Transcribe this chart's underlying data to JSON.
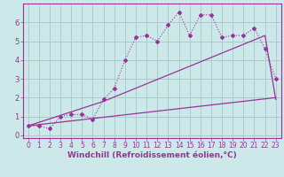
{
  "title": "",
  "xlabel": "Windchill (Refroidissement éolien,°C)",
  "ylabel": "",
  "background_color": "#cce8e8",
  "grid_color": "#aacccc",
  "line_color": "#993399",
  "xlim": [
    -0.5,
    23.5
  ],
  "ylim": [
    -0.15,
    7.0
  ],
  "xticks": [
    0,
    1,
    2,
    3,
    4,
    5,
    6,
    7,
    8,
    9,
    10,
    11,
    12,
    13,
    14,
    15,
    16,
    17,
    18,
    19,
    20,
    21,
    22,
    23
  ],
  "yticks": [
    0,
    1,
    2,
    3,
    4,
    5,
    6
  ],
  "line1_x": [
    0,
    1,
    2,
    3,
    4,
    5,
    6,
    7,
    8,
    9,
    10,
    11,
    12,
    13,
    14,
    15,
    16,
    17,
    18,
    19,
    20,
    21,
    22,
    23
  ],
  "line1_y": [
    0.5,
    0.5,
    0.35,
    1.0,
    1.1,
    1.1,
    0.85,
    1.9,
    2.5,
    4.0,
    5.2,
    5.3,
    5.0,
    5.85,
    6.55,
    5.3,
    6.4,
    6.4,
    5.2,
    5.3,
    5.3,
    5.7,
    4.6,
    3.0
  ],
  "line2_x": [
    0,
    23
  ],
  "line2_y": [
    0.5,
    2.0
  ],
  "line3_x": [
    0,
    7,
    22,
    23
  ],
  "line3_y": [
    0.5,
    1.8,
    5.3,
    1.9
  ],
  "font_color": "#993399",
  "tick_fontsize": 5.5,
  "label_fontsize": 6.5
}
